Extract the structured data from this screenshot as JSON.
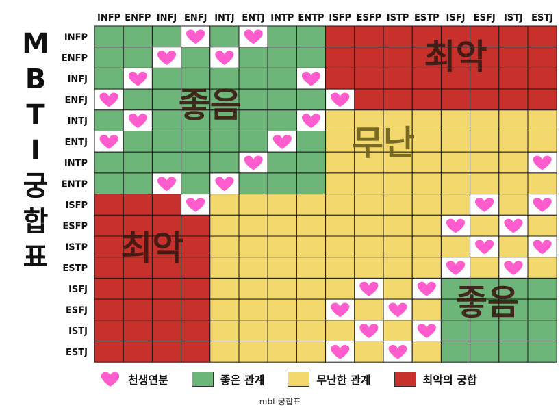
{
  "title_chars": [
    "M",
    "B",
    "T",
    "I",
    "궁",
    "합",
    "표"
  ],
  "types": [
    "INFP",
    "ENFP",
    "INFJ",
    "ENFJ",
    "INTJ",
    "ENTJ",
    "INTP",
    "ENTP",
    "ISFP",
    "ESFP",
    "ISTP",
    "ESTP",
    "ISFJ",
    "ESFJ",
    "ISTJ",
    "ESTJ"
  ],
  "colors": {
    "heart": "#ff5ccd",
    "good": "#6db578",
    "neutral": "#f3d86e",
    "worst": "#c8302b",
    "label_dark": "#3a1a12",
    "label_olive": "#6b5f18"
  },
  "categories_legend": [
    {
      "key": "heart",
      "label": "천생연분"
    },
    {
      "key": "good",
      "label": "좋은 관계"
    },
    {
      "key": "neutral",
      "label": "무난한 관계"
    },
    {
      "key": "worst",
      "label": "최악의 궁합"
    }
  ],
  "grid": [
    "GGGHGHGGWWWWWWWW",
    "GGHGHGGGWWWWWWWW",
    "GHGGGGGHWWWWWWWW",
    "HGGGGGGGHWWWWWWW",
    "GHGGGGGHNNNNNNNN",
    "HGGGGGHGNNNNNNNN",
    "GGGGGHGGNNNNNNNH",
    "GGHGHGGGNNNNNNNN",
    "WWWHNNNNNNNNNHNH",
    "WWWWNNNNNNNNHNHN",
    "WWWWNNNNNNNNNHNH",
    "WWWWNNNNNNNNHNHN",
    "WWWWNNNNNHNHGGGG",
    "WWWWNNNNHNHNGGGG",
    "WWWWNNNNNHNHGGGG",
    "WWWWNNNNHNHNGGGG"
  ],
  "region_labels": [
    {
      "text": "최악",
      "row_center": 1.5,
      "col_center": 12.5,
      "color_key": "label_dark"
    },
    {
      "text": "좋음",
      "row_center": 3.8,
      "col_center": 4.0,
      "color_key": "label_dark"
    },
    {
      "text": "무난",
      "row_center": 5.6,
      "col_center": 10.0,
      "color_key": "label_olive"
    },
    {
      "text": "최악",
      "row_center": 10.6,
      "col_center": 2.0,
      "color_key": "label_dark"
    },
    {
      "text": "좋음",
      "row_center": 13.2,
      "col_center": 13.6,
      "color_key": "label_dark"
    }
  ],
  "caption": "mbti궁합표"
}
